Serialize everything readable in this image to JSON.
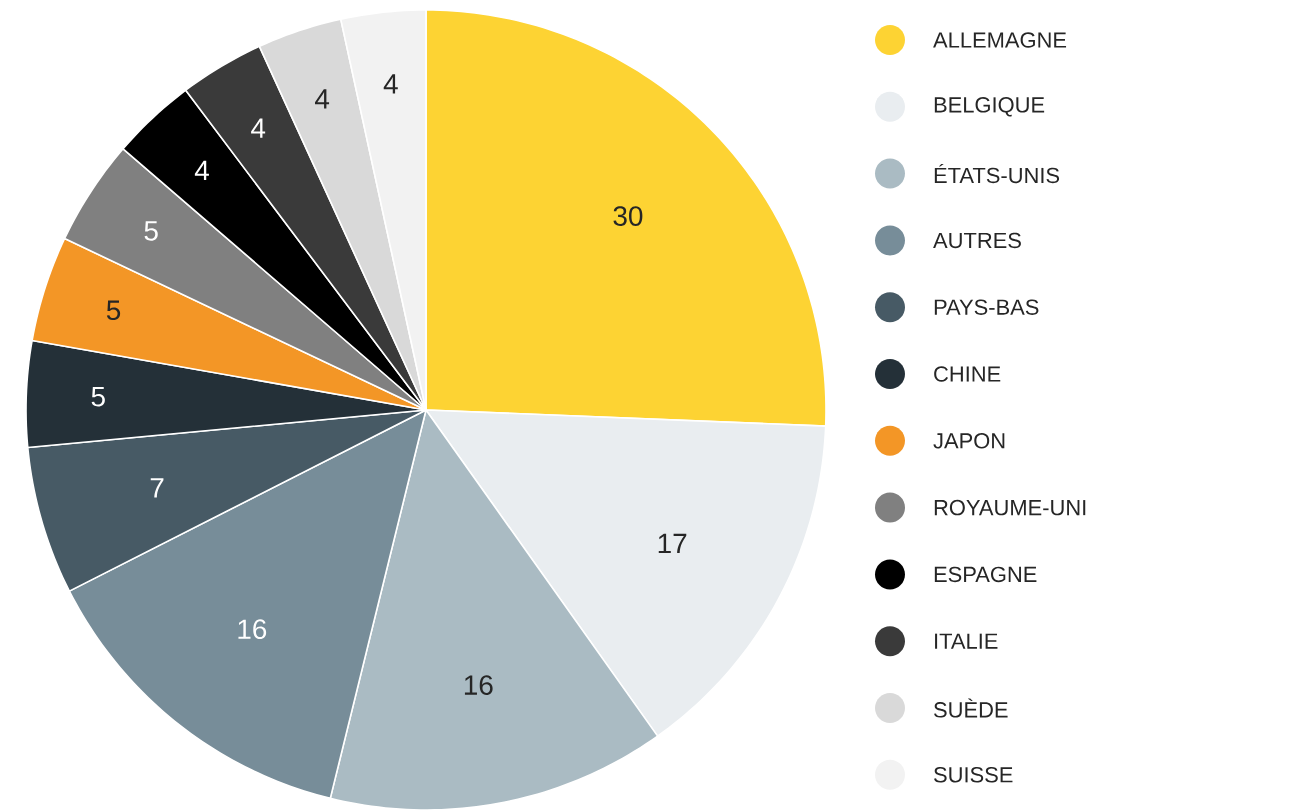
{
  "chart_data": {
    "type": "pie",
    "categories": [
      "ALLEMAGNE",
      "BELGIQUE",
      "ÉTATS-UNIS",
      "AUTRES",
      "PAYS-BAS",
      "CHINE",
      "JAPON",
      "ROYAUME-UNI",
      "ESPAGNE",
      "ITALIE",
      "SUÈDE",
      "SUISSE"
    ],
    "values": [
      30,
      17,
      16,
      16,
      7,
      5,
      5,
      5,
      4,
      4,
      4,
      4
    ],
    "colors": [
      "#fdd333",
      "#e9edf0",
      "#aabbc3",
      "#778d99",
      "#475a65",
      "#243038",
      "#f39626",
      "#808080",
      "#000000",
      "#3a3a3a",
      "#d9d9d9",
      "#f2f2f2"
    ],
    "data_labels": true,
    "legend": "right"
  }
}
